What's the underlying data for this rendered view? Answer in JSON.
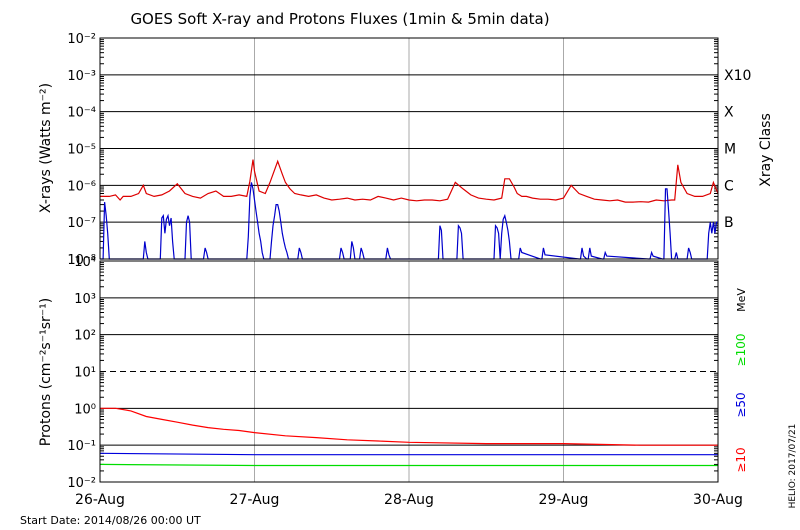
{
  "title": "GOES Soft X-ray and Protons Fluxes   (1min & 5min data)",
  "start_date": "Start Date: 2014/08/26 00:00 UT",
  "credit": "HELIO: 2017/07/21",
  "colors": {
    "xray_long": "#dd0000",
    "xray_short": "#0000cc",
    "p10": "#ff0000",
    "p50": "#0000dd",
    "p100": "#00dd00",
    "grid": "#000000",
    "day_line": "#aaaaaa"
  },
  "chart_data": [
    {
      "type": "line",
      "panel": "xray",
      "ylabel": "X-rays (Watts m⁻²)",
      "ylog": true,
      "ylim": [
        1e-08,
        0.01
      ],
      "ytick_labels": [
        "10⁻⁸",
        "10⁻⁷",
        "10⁻⁶",
        "10⁻⁵",
        "10⁻⁴",
        "10⁻³",
        "10⁻²"
      ],
      "x_tick_labels": [
        "26-Aug",
        "27-Aug",
        "28-Aug",
        "29-Aug",
        "30-Aug"
      ],
      "xlim_days": [
        0,
        4
      ],
      "right_axis_label": "Xray Class",
      "class_labels": [
        {
          "label": "B",
          "value": 1e-07
        },
        {
          "label": "C",
          "value": 1e-06
        },
        {
          "label": "M",
          "value": 1e-05
        },
        {
          "label": "X",
          "value": 0.0001
        },
        {
          "label": "X10",
          "value": 0.001
        }
      ],
      "series": [
        {
          "name": "long",
          "color": "#dd0000",
          "x": [
            0,
            0.06,
            0.1,
            0.13,
            0.15,
            0.2,
            0.25,
            0.28,
            0.3,
            0.35,
            0.4,
            0.45,
            0.5,
            0.55,
            0.6,
            0.65,
            0.7,
            0.75,
            0.8,
            0.85,
            0.9,
            0.95,
            0.97,
            0.99,
            1.0,
            1.03,
            1.07,
            1.1,
            1.15,
            1.18,
            1.2,
            1.23,
            1.26,
            1.3,
            1.35,
            1.4,
            1.45,
            1.5,
            1.55,
            1.6,
            1.65,
            1.7,
            1.75,
            1.8,
            1.85,
            1.9,
            1.95,
            2.0,
            2.05,
            2.1,
            2.15,
            2.2,
            2.25,
            2.3,
            2.35,
            2.4,
            2.45,
            2.5,
            2.55,
            2.6,
            2.62,
            2.65,
            2.68,
            2.7,
            2.73,
            2.76,
            2.8,
            2.85,
            2.9,
            2.95,
            3.0,
            3.05,
            3.1,
            3.15,
            3.2,
            3.25,
            3.3,
            3.35,
            3.4,
            3.45,
            3.5,
            3.55,
            3.6,
            3.65,
            3.7,
            3.72,
            3.74,
            3.76,
            3.8,
            3.85,
            3.9,
            3.95,
            3.97,
            4.0
          ],
          "y": [
            5e-07,
            5e-07,
            5.5e-07,
            4e-07,
            5e-07,
            5e-07,
            6e-07,
            1e-06,
            6e-07,
            5e-07,
            5.5e-07,
            7e-07,
            1.1e-06,
            6e-07,
            5e-07,
            4.5e-07,
            6e-07,
            7e-07,
            5e-07,
            5e-07,
            5.5e-07,
            5e-07,
            1.3e-06,
            5e-06,
            2.4e-06,
            7e-07,
            6e-07,
            1.2e-06,
            4.5e-06,
            2e-06,
            1.2e-06,
            8e-07,
            6e-07,
            5.5e-07,
            5e-07,
            5.5e-07,
            4.5e-07,
            4e-07,
            4.2e-07,
            4.5e-07,
            4e-07,
            4.2e-07,
            4e-07,
            5e-07,
            4.5e-07,
            4e-07,
            4.5e-07,
            4e-07,
            3.8e-07,
            4e-07,
            4e-07,
            3.8e-07,
            4.2e-07,
            1.2e-06,
            8e-07,
            5.5e-07,
            4.5e-07,
            4.2e-07,
            4e-07,
            4.5e-07,
            1.5e-06,
            1.5e-06,
            9e-07,
            6e-07,
            5e-07,
            5e-07,
            4.5e-07,
            4.2e-07,
            4.2e-07,
            4e-07,
            4.5e-07,
            1e-06,
            6e-07,
            5e-07,
            4.2e-07,
            4e-07,
            3.8e-07,
            4e-07,
            3.5e-07,
            3.5e-07,
            3.6e-07,
            3.5e-07,
            4e-07,
            3.8e-07,
            4e-07,
            4e-07,
            3.6e-06,
            1.2e-06,
            6e-07,
            5e-07,
            5e-07,
            6e-07,
            1.2e-06,
            6e-07
          ]
        },
        {
          "name": "short",
          "color": "#0000cc",
          "x": [
            0,
            0.02,
            0.03,
            0.04,
            0.05,
            0.06,
            0.07,
            0.08,
            0.28,
            0.29,
            0.3,
            0.31,
            0.39,
            0.4,
            0.41,
            0.42,
            0.43,
            0.44,
            0.45,
            0.46,
            0.47,
            0.48,
            0.49,
            0.55,
            0.56,
            0.57,
            0.58,
            0.59,
            0.6,
            0.67,
            0.68,
            0.69,
            0.7,
            0.95,
            0.96,
            0.97,
            0.98,
            0.99,
            1.0,
            1.01,
            1.02,
            1.03,
            1.04,
            1.05,
            1.06,
            1.07,
            1.08,
            1.1,
            1.11,
            1.12,
            1.13,
            1.14,
            1.15,
            1.16,
            1.17,
            1.18,
            1.19,
            1.2,
            1.21,
            1.22,
            1.23,
            1.24,
            1.25,
            1.28,
            1.29,
            1.3,
            1.31,
            1.55,
            1.56,
            1.57,
            1.58,
            1.62,
            1.63,
            1.64,
            1.65,
            1.68,
            1.69,
            1.7,
            1.71,
            1.85,
            1.86,
            1.87,
            1.88,
            2.19,
            2.2,
            2.21,
            2.22,
            2.23,
            2.24,
            2.31,
            2.32,
            2.33,
            2.34,
            2.35,
            2.36,
            2.37,
            2.55,
            2.56,
            2.57,
            2.58,
            2.59,
            2.6,
            2.61,
            2.62,
            2.63,
            2.64,
            2.65,
            2.66,
            2.67,
            2.7,
            2.71,
            2.72,
            2.73,
            2.85,
            2.86,
            2.87,
            2.88,
            3.1,
            3.11,
            3.12,
            3.13,
            3.15,
            3.16,
            3.17,
            3.18,
            3.25,
            3.26,
            3.27,
            3.28,
            3.55,
            3.56,
            3.57,
            3.58,
            3.64,
            3.65,
            3.66,
            3.67,
            3.68,
            3.69,
            3.7,
            3.71,
            3.72,
            3.73,
            3.74,
            3.75,
            3.76,
            3.77,
            3.8,
            3.81,
            3.82,
            3.83,
            3.9,
            3.91,
            3.92,
            3.93,
            3.94,
            3.95,
            3.96,
            3.97,
            3.98,
            3.99,
            4.0
          ],
          "y": [
            1e-08,
            1e-08,
            3.5e-07,
            1.5e-07,
            5e-08,
            1e-08,
            1e-08,
            1e-08,
            1e-08,
            3e-08,
            1.5e-08,
            1e-08,
            1e-08,
            1.3e-07,
            1.5e-07,
            5e-08,
            1.2e-07,
            1.5e-07,
            8e-08,
            1.3e-07,
            3e-08,
            1e-08,
            1e-08,
            1e-08,
            1e-07,
            1.5e-07,
            1e-07,
            1e-08,
            1e-08,
            1e-08,
            2e-08,
            1.5e-08,
            1e-08,
            1e-08,
            4e-08,
            5e-07,
            1.2e-06,
            8e-07,
            4e-07,
            2e-07,
            1e-07,
            5e-08,
            3e-08,
            1.5e-08,
            1e-08,
            1e-08,
            1e-08,
            1e-08,
            3e-08,
            8e-08,
            1.5e-07,
            3e-07,
            3e-07,
            2e-07,
            1e-07,
            5e-08,
            3e-08,
            2e-08,
            1.5e-08,
            1e-08,
            1e-08,
            1e-08,
            1e-08,
            1e-08,
            2e-08,
            1.5e-08,
            1e-08,
            1e-08,
            2e-08,
            1.5e-08,
            1e-08,
            1e-08,
            3e-08,
            2e-08,
            1e-08,
            1e-08,
            2e-08,
            1.5e-08,
            1e-08,
            1e-08,
            2e-08,
            1.3e-08,
            1e-08,
            1e-08,
            8e-08,
            6e-08,
            1e-08,
            1e-08,
            1e-08,
            1e-08,
            8e-08,
            7e-08,
            5e-08,
            1e-08,
            1e-08,
            1e-08,
            1e-08,
            8e-08,
            7e-08,
            5e-08,
            1e-08,
            5e-08,
            1.2e-07,
            1.5e-07,
            1e-07,
            6e-08,
            3e-08,
            1e-08,
            1e-08,
            1e-08,
            1e-08,
            2e-08,
            1.5e-08,
            1e-08,
            1e-08,
            2e-08,
            1.3e-08,
            1e-08,
            1e-08,
            2e-08,
            1.2e-08,
            1e-08,
            1e-08,
            2e-08,
            1.2e-08,
            1e-08,
            1e-08,
            1.5e-08,
            1.2e-08,
            1e-08,
            1e-08,
            1.5e-08,
            1.2e-08,
            1e-08,
            1e-08,
            8e-07,
            8e-07,
            2e-07,
            5e-08,
            1e-08,
            1e-08,
            1e-08,
            1.5e-08,
            1e-08,
            1e-08,
            1e-08,
            1e-08,
            1e-08,
            2e-08,
            1.5e-08,
            1e-08,
            1e-08,
            1e-08,
            1e-08,
            1e-08,
            5e-08,
            1e-07,
            5e-08,
            1e-07,
            5e-08,
            1e-07,
            1e-07
          ]
        }
      ]
    },
    {
      "type": "line",
      "panel": "protons",
      "ylabel": "Protons (cm⁻²s⁻¹sr⁻¹)",
      "ylog": true,
      "ylim": [
        0.01,
        10000
      ],
      "ytick_labels": [
        "10⁻²",
        "10⁻¹",
        "10⁰",
        "10¹",
        "10²",
        "10³",
        "10⁴"
      ],
      "x_tick_labels": [
        "26-Aug",
        "27-Aug",
        "28-Aug",
        "29-Aug",
        "30-Aug"
      ],
      "xlim_days": [
        0,
        4
      ],
      "threshold_dashed": 10,
      "unit_label": "MeV",
      "energy_labels": [
        {
          "label": "≥100",
          "color": "#00dd00"
        },
        {
          "label": "≥50",
          "color": "#0000dd"
        },
        {
          "label": "≥10",
          "color": "#ff0000"
        }
      ],
      "series": [
        {
          "name": "≥10",
          "color": "#ff0000",
          "x": [
            0,
            0.1,
            0.2,
            0.3,
            0.4,
            0.5,
            0.6,
            0.7,
            0.8,
            0.9,
            1.0,
            1.2,
            1.4,
            1.6,
            1.8,
            2.0,
            2.5,
            3.0,
            3.5,
            4.0
          ],
          "y": [
            1.0,
            1.0,
            0.85,
            0.6,
            0.5,
            0.42,
            0.35,
            0.3,
            0.27,
            0.25,
            0.22,
            0.18,
            0.16,
            0.14,
            0.13,
            0.12,
            0.11,
            0.11,
            0.1,
            0.1
          ]
        },
        {
          "name": "≥50",
          "color": "#0000dd",
          "x": [
            0,
            1,
            2,
            3,
            4
          ],
          "y": [
            0.06,
            0.055,
            0.055,
            0.055,
            0.055
          ]
        },
        {
          "name": "≥100",
          "color": "#00dd00",
          "x": [
            0,
            1,
            2,
            3,
            4
          ],
          "y": [
            0.03,
            0.028,
            0.028,
            0.028,
            0.028
          ]
        }
      ]
    }
  ]
}
